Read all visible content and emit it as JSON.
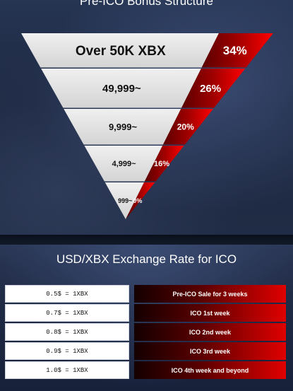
{
  "funnel": {
    "title": "Pre-ICO Bonus Structure",
    "tiers": [
      {
        "threshold": "Over 50K XBX",
        "bonus": "34%"
      },
      {
        "threshold": "49,999~",
        "bonus": "26%"
      },
      {
        "threshold": "9,999~",
        "bonus": "20%"
      },
      {
        "threshold": "4,999~",
        "bonus": "16%"
      },
      {
        "threshold": "999~",
        "bonus": "0%"
      }
    ]
  },
  "exchange": {
    "title": "USD/XBX Exchange Rate for ICO",
    "rows": [
      {
        "rate": "0.5$ = 1XBX",
        "period": "Pre-ICO Sale for 3 weeks"
      },
      {
        "rate": "0.7$ = 1XBX",
        "period": "ICO 1st week"
      },
      {
        "rate": "0.8$ = 1XBX",
        "period": "ICO 2nd week"
      },
      {
        "rate": "0.9$ = 1XBX",
        "period": "ICO 3rd week"
      },
      {
        "rate": "1.0$ = 1XBX",
        "period": "ICO 4th week and beyond"
      }
    ]
  },
  "colors": {
    "bonus_red": "#e00000",
    "funnel_light": "#e6e6e6"
  }
}
